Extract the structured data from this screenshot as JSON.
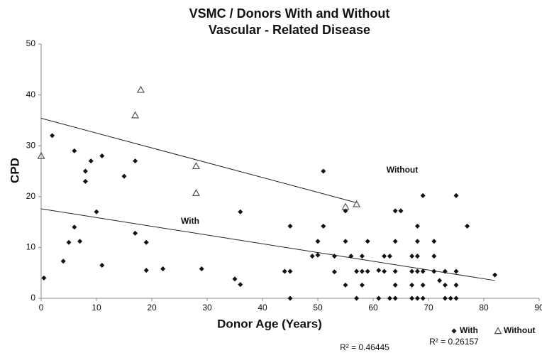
{
  "chart_data": {
    "type": "scatter",
    "title": [
      "VSMC / Donors With and Without",
      "Vascular - Related Disease"
    ],
    "xlabel": "Donor Age (Years)",
    "ylabel": "CPD",
    "xlim": [
      0,
      90
    ],
    "xticks": [
      0,
      10,
      20,
      30,
      40,
      50,
      60,
      70,
      80,
      90
    ],
    "ylim": [
      0,
      50
    ],
    "yticks": [
      0,
      10,
      20,
      30,
      40,
      50
    ],
    "grid": false,
    "legend": "bottom-right",
    "series": [
      {
        "name": "With",
        "color": "#111111",
        "marker": "diamond",
        "x": [
          0.5,
          2,
          4,
          5,
          6,
          6,
          7,
          8,
          8,
          9,
          10,
          11,
          11,
          15,
          17,
          17,
          19,
          19,
          22,
          29,
          35,
          36,
          36,
          44,
          45,
          45,
          45,
          49,
          50,
          50,
          51,
          51,
          53,
          53,
          55,
          55,
          55,
          56,
          57,
          57,
          58,
          58,
          58,
          59,
          59,
          61,
          61,
          62,
          62,
          63,
          63,
          64,
          64,
          64,
          64,
          64,
          65,
          67,
          67,
          67,
          67,
          68,
          68,
          68,
          68,
          68,
          69,
          69,
          69,
          69,
          71,
          71,
          71,
          72,
          73,
          73,
          73,
          74,
          75,
          75,
          75,
          75,
          77,
          82
        ],
        "values": [
          4,
          32,
          7.3,
          11,
          29,
          14,
          11.2,
          25,
          23,
          27,
          17,
          28,
          6.5,
          24,
          27,
          12.8,
          11,
          5.5,
          5.8,
          5.8,
          3.8,
          17,
          2.7,
          5.3,
          5.3,
          14.2,
          0,
          8.3,
          8.5,
          11.2,
          25,
          14.2,
          8.3,
          5.2,
          17.2,
          11.2,
          2.6,
          8.3,
          5.3,
          0,
          5.3,
          8.3,
          2.6,
          11.2,
          5.3,
          0,
          5.5,
          8.3,
          5.3,
          8.3,
          0,
          0,
          17.2,
          11.2,
          5.3,
          2.6,
          17.2,
          8.3,
          5.3,
          2.6,
          0,
          14.2,
          11.2,
          8.3,
          5.3,
          0,
          20.2,
          5.3,
          0,
          2.6,
          11.2,
          8.3,
          5.3,
          3.5,
          5.3,
          2.6,
          0,
          0,
          20.2,
          5.3,
          2.6,
          0,
          14.2,
          4.6
        ]
      },
      {
        "name": "Without",
        "color": "#555555",
        "marker": "triangle",
        "x": [
          0,
          17,
          18,
          28,
          28,
          55,
          57
        ],
        "values": [
          28,
          36,
          41,
          26,
          20.7,
          18,
          18.5
        ]
      }
    ],
    "trendlines": [
      {
        "x": [
          0,
          57
        ],
        "y": [
          35.4,
          18.8
        ]
      },
      {
        "x": [
          0,
          82
        ],
        "y": [
          17.6,
          3.5
        ]
      }
    ],
    "annotations": [
      "Without",
      "With"
    ],
    "r2_labels": [
      "R² = 0.46445",
      "R² = 0.26157"
    ]
  }
}
